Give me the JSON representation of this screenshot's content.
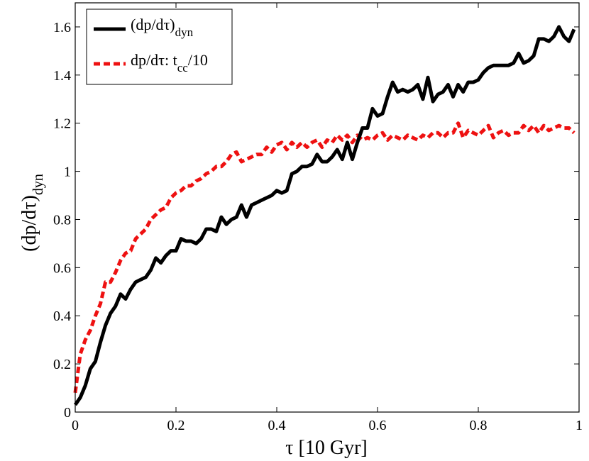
{
  "chart_data": {
    "type": "line",
    "title": "",
    "xlabel": "τ [10 Gyr]",
    "ylabel_main": "(dp/dτ)",
    "ylabel_sub": "dyn",
    "xlim": [
      0,
      1
    ],
    "ylim": [
      0,
      1.7
    ],
    "xticks": [
      0,
      0.2,
      0.4,
      0.6,
      0.8,
      1
    ],
    "xtick_labels": [
      "0",
      "0.2",
      "0.4",
      "0.6",
      "0.8",
      "1"
    ],
    "yticks": [
      0,
      0.2,
      0.4,
      0.6,
      0.8,
      1,
      1.2,
      1.4,
      1.6
    ],
    "ytick_labels": [
      "0",
      "0.2",
      "0.4",
      "0.6",
      "0.8",
      "1",
      "1.2",
      "1.4",
      "1.6"
    ],
    "grid": false,
    "legend_position": "top-left",
    "series": [
      {
        "name": "(dp/dτ)_dyn",
        "legend_main": "(dp/dτ)",
        "legend_sub": "dyn",
        "legend_tail": "",
        "color": "#000000",
        "style": "solid",
        "x": [
          0,
          0.01,
          0.02,
          0.03,
          0.04,
          0.05,
          0.06,
          0.07,
          0.08,
          0.09,
          0.1,
          0.11,
          0.12,
          0.13,
          0.14,
          0.15,
          0.16,
          0.17,
          0.18,
          0.19,
          0.2,
          0.21,
          0.22,
          0.23,
          0.24,
          0.25,
          0.26,
          0.27,
          0.28,
          0.29,
          0.3,
          0.31,
          0.32,
          0.33,
          0.34,
          0.35,
          0.36,
          0.37,
          0.38,
          0.39,
          0.4,
          0.41,
          0.42,
          0.43,
          0.44,
          0.45,
          0.46,
          0.47,
          0.48,
          0.49,
          0.5,
          0.51,
          0.52,
          0.53,
          0.54,
          0.55,
          0.56,
          0.57,
          0.58,
          0.59,
          0.6,
          0.61,
          0.62,
          0.63,
          0.64,
          0.65,
          0.66,
          0.67,
          0.68,
          0.69,
          0.7,
          0.71,
          0.72,
          0.73,
          0.74,
          0.75,
          0.76,
          0.77,
          0.78,
          0.79,
          0.8,
          0.81,
          0.82,
          0.83,
          0.84,
          0.85,
          0.86,
          0.87,
          0.88,
          0.89,
          0.9,
          0.91,
          0.92,
          0.93,
          0.94,
          0.95,
          0.96,
          0.97,
          0.98,
          0.99
        ],
        "y": [
          0.03,
          0.06,
          0.11,
          0.18,
          0.21,
          0.29,
          0.36,
          0.41,
          0.44,
          0.49,
          0.47,
          0.51,
          0.54,
          0.55,
          0.56,
          0.59,
          0.64,
          0.62,
          0.65,
          0.67,
          0.67,
          0.72,
          0.71,
          0.71,
          0.7,
          0.72,
          0.76,
          0.76,
          0.75,
          0.81,
          0.78,
          0.8,
          0.81,
          0.86,
          0.81,
          0.86,
          0.87,
          0.88,
          0.89,
          0.9,
          0.92,
          0.91,
          0.92,
          0.99,
          1.0,
          1.02,
          1.02,
          1.03,
          1.07,
          1.04,
          1.04,
          1.06,
          1.09,
          1.05,
          1.12,
          1.05,
          1.12,
          1.18,
          1.18,
          1.26,
          1.23,
          1.24,
          1.31,
          1.37,
          1.33,
          1.34,
          1.33,
          1.34,
          1.36,
          1.3,
          1.39,
          1.29,
          1.32,
          1.33,
          1.36,
          1.31,
          1.36,
          1.33,
          1.37,
          1.37,
          1.38,
          1.41,
          1.43,
          1.44,
          1.44,
          1.44,
          1.44,
          1.45,
          1.49,
          1.45,
          1.46,
          1.48,
          1.55,
          1.55,
          1.54,
          1.56,
          1.6,
          1.56,
          1.54,
          1.59
        ]
      },
      {
        "name": "dp/dτ: t_cc/10",
        "legend_main": "dp/dτ: t",
        "legend_sub": "cc",
        "legend_tail": "/10",
        "color": "#ee1111",
        "style": "dashed",
        "x": [
          0,
          0.01,
          0.02,
          0.03,
          0.04,
          0.05,
          0.06,
          0.07,
          0.08,
          0.09,
          0.1,
          0.11,
          0.12,
          0.13,
          0.14,
          0.15,
          0.16,
          0.17,
          0.18,
          0.19,
          0.2,
          0.21,
          0.22,
          0.23,
          0.24,
          0.25,
          0.26,
          0.27,
          0.28,
          0.29,
          0.3,
          0.31,
          0.32,
          0.33,
          0.34,
          0.35,
          0.36,
          0.37,
          0.38,
          0.39,
          0.4,
          0.41,
          0.42,
          0.43,
          0.44,
          0.45,
          0.46,
          0.47,
          0.48,
          0.49,
          0.5,
          0.51,
          0.52,
          0.53,
          0.54,
          0.55,
          0.56,
          0.57,
          0.58,
          0.59,
          0.6,
          0.61,
          0.62,
          0.63,
          0.64,
          0.65,
          0.66,
          0.67,
          0.68,
          0.69,
          0.7,
          0.71,
          0.72,
          0.73,
          0.74,
          0.75,
          0.76,
          0.77,
          0.78,
          0.79,
          0.8,
          0.81,
          0.82,
          0.83,
          0.84,
          0.85,
          0.86,
          0.87,
          0.88,
          0.89,
          0.9,
          0.91,
          0.92,
          0.93,
          0.94,
          0.95,
          0.96,
          0.97,
          0.98,
          0.99
        ],
        "y": [
          0.08,
          0.24,
          0.3,
          0.34,
          0.4,
          0.45,
          0.54,
          0.54,
          0.58,
          0.63,
          0.66,
          0.67,
          0.72,
          0.74,
          0.76,
          0.8,
          0.82,
          0.84,
          0.85,
          0.89,
          0.91,
          0.92,
          0.94,
          0.94,
          0.96,
          0.97,
          0.99,
          1.0,
          1.02,
          1.02,
          1.04,
          1.07,
          1.08,
          1.04,
          1.05,
          1.06,
          1.07,
          1.07,
          1.1,
          1.08,
          1.11,
          1.12,
          1.09,
          1.12,
          1.1,
          1.12,
          1.1,
          1.12,
          1.13,
          1.1,
          1.13,
          1.12,
          1.15,
          1.13,
          1.15,
          1.12,
          1.15,
          1.13,
          1.14,
          1.13,
          1.15,
          1.16,
          1.13,
          1.15,
          1.14,
          1.13,
          1.15,
          1.14,
          1.13,
          1.15,
          1.14,
          1.16,
          1.16,
          1.14,
          1.16,
          1.16,
          1.2,
          1.14,
          1.17,
          1.16,
          1.15,
          1.17,
          1.19,
          1.14,
          1.16,
          1.17,
          1.15,
          1.16,
          1.16,
          1.19,
          1.17,
          1.19,
          1.16,
          1.19,
          1.17,
          1.18,
          1.19,
          1.18,
          1.18,
          1.16
        ]
      }
    ]
  }
}
